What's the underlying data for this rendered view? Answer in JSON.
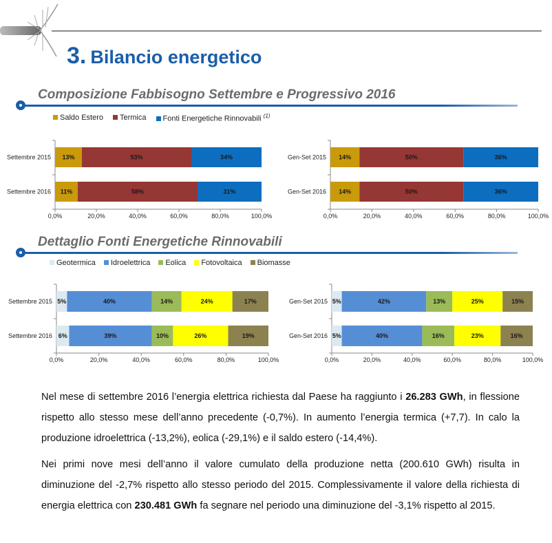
{
  "header": {
    "section_number": "3.",
    "title": "Bilancio energetico"
  },
  "section1": {
    "heading": "Composizione Fabbisogno Settembre e Progressivo 2016",
    "legend": [
      {
        "label": "Saldo Estero",
        "color": "#c99a0c"
      },
      {
        "label": "Termica",
        "color": "#953735"
      },
      {
        "label": "Fonti Energetiche Rinnovabili",
        "color": "#0d6ebf",
        "note": "(1)"
      }
    ]
  },
  "section2": {
    "heading": "Dettaglio Fonti Energetiche Rinnovabili",
    "legend": [
      {
        "label": "Geotermica",
        "color": "#dce9f1"
      },
      {
        "label": "Idroelettrica",
        "color": "#558ed5"
      },
      {
        "label": "Eolica",
        "color": "#9bbb59"
      },
      {
        "label": "Fotovoltaica",
        "color": "#ffff00"
      },
      {
        "label": "Biomasse",
        "color": "#8c8250"
      }
    ]
  },
  "chart_data": [
    {
      "type": "bar",
      "orientation": "horizontal",
      "stacked": true,
      "xlim": [
        0,
        100
      ],
      "ticks": [
        "0,0%",
        "20,0%",
        "40,0%",
        "60,0%",
        "80,0%",
        "100,0%"
      ],
      "categories": [
        "Settembre 2015",
        "Settembre 2016"
      ],
      "series": [
        {
          "name": "Saldo Estero",
          "color": "#c99a0c",
          "values": [
            13,
            11
          ],
          "labels": [
            "13%",
            "11%"
          ]
        },
        {
          "name": "Termica",
          "color": "#953735",
          "values": [
            53,
            58
          ],
          "labels": [
            "53%",
            "58%"
          ]
        },
        {
          "name": "Fonti Energetiche Rinnovabili",
          "color": "#0d6ebf",
          "values": [
            34,
            31
          ],
          "labels": [
            "34%",
            "31%"
          ]
        }
      ]
    },
    {
      "type": "bar",
      "orientation": "horizontal",
      "stacked": true,
      "xlim": [
        0,
        100
      ],
      "ticks": [
        "0,0%",
        "20,0%",
        "40,0%",
        "60,0%",
        "80,0%",
        "100,0%"
      ],
      "categories": [
        "Gen-Set  2015",
        "Gen-Set 2016"
      ],
      "series": [
        {
          "name": "Saldo Estero",
          "color": "#c99a0c",
          "values": [
            14,
            14
          ],
          "labels": [
            "14%",
            "14%"
          ]
        },
        {
          "name": "Termica",
          "color": "#953735",
          "values": [
            50,
            50
          ],
          "labels": [
            "50%",
            "50%"
          ]
        },
        {
          "name": "Fonti Energetiche Rinnovabili",
          "color": "#0d6ebf",
          "values": [
            36,
            36
          ],
          "labels": [
            "36%",
            "36%"
          ]
        }
      ]
    },
    {
      "type": "bar",
      "orientation": "horizontal",
      "stacked": true,
      "xlim": [
        0,
        100
      ],
      "ticks": [
        "0,0%",
        "20,0%",
        "40,0%",
        "60,0%",
        "80,0%",
        "100,0%"
      ],
      "categories": [
        "Settembre 2015",
        "Settembre 2016"
      ],
      "series": [
        {
          "name": "Geotermica",
          "color": "#dce9f1",
          "values": [
            5,
            6
          ],
          "labels": [
            "5%",
            "6%"
          ]
        },
        {
          "name": "Idroelettrica",
          "color": "#558ed5",
          "values": [
            40,
            39
          ],
          "labels": [
            "40%",
            "39%"
          ]
        },
        {
          "name": "Eolica",
          "color": "#9bbb59",
          "values": [
            14,
            10
          ],
          "labels": [
            "14%",
            "10%"
          ]
        },
        {
          "name": "Fotovoltaica",
          "color": "#ffff00",
          "values": [
            24,
            26
          ],
          "labels": [
            "24%",
            "26%"
          ]
        },
        {
          "name": "Biomasse",
          "color": "#8c8250",
          "values": [
            17,
            19
          ],
          "labels": [
            "17%",
            "19%"
          ]
        }
      ]
    },
    {
      "type": "bar",
      "orientation": "horizontal",
      "stacked": true,
      "xlim": [
        0,
        100
      ],
      "ticks": [
        "0,0%",
        "20,0%",
        "40,0%",
        "60,0%",
        "80,0%",
        "100,0%"
      ],
      "categories": [
        "Gen-Set  2015",
        "Gen-Set 2016"
      ],
      "series": [
        {
          "name": "Geotermica",
          "color": "#dce9f1",
          "values": [
            5,
            5
          ],
          "labels": [
            "5%",
            "5%"
          ]
        },
        {
          "name": "Idroelettrica",
          "color": "#558ed5",
          "values": [
            42,
            40
          ],
          "labels": [
            "42%",
            "40%"
          ]
        },
        {
          "name": "Eolica",
          "color": "#9bbb59",
          "values": [
            13,
            16
          ],
          "labels": [
            "13%",
            "16%"
          ]
        },
        {
          "name": "Fotovoltaica",
          "color": "#ffff00",
          "values": [
            25,
            23
          ],
          "labels": [
            "25%",
            "23%"
          ]
        },
        {
          "name": "Biomasse",
          "color": "#8c8250",
          "values": [
            15,
            16
          ],
          "labels": [
            "15%",
            "16%"
          ]
        }
      ]
    }
  ],
  "body": {
    "p1_a": "Nel mese di settembre 2016 l’energia elettrica richiesta dal Paese ha raggiunto i ",
    "p1_b": "26.283 GWh",
    "p1_c": ", in flessione rispetto allo stesso mese dell’anno precedente (-0,7%). In aumento l’energia termica (+7,7). In calo la produzione idroelettrica (-13,2%), eolica (-29,1%) e il saldo estero (-14,4%).",
    "p2_a": "Nei primi nove mesi dell’anno il valore cumulato della produzione netta (200.610 GWh) risulta in diminuzione del -2,7% rispetto allo stesso periodo del 2015. Complessivamente il valore della richiesta di energia elettrica con ",
    "p2_b": "230.481 GWh",
    "p2_c": " fa segnare nel periodo una diminuzione del -3,1% rispetto al 2015."
  }
}
